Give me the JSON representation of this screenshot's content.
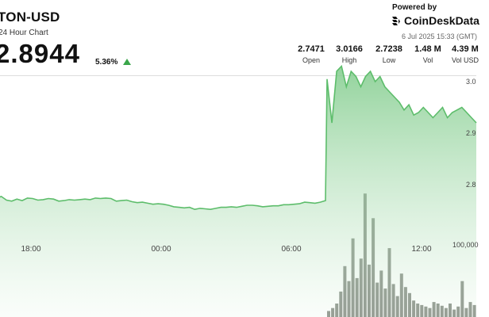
{
  "header": {
    "title": "TON-USD",
    "subtitle": "24 Hour Chart",
    "price": "2.8944",
    "change": "5.36%"
  },
  "branding": {
    "powered_by": "Powered by",
    "name": "CoinDeskData",
    "timestamp": "6 Jul 2025 15:33 (GMT)"
  },
  "stats": [
    {
      "value": "2.7471",
      "label": "Open"
    },
    {
      "value": "3.0166",
      "label": "High"
    },
    {
      "value": "2.7238",
      "label": "Low"
    },
    {
      "value": "1.48 M",
      "label": "Vol"
    },
    {
      "value": "4.39 M",
      "label": "Vol USD"
    }
  ],
  "colors": {
    "line": "#5dbd6b",
    "fill_top": "#7fcb8a",
    "fill_bottom": "#f2faf3",
    "volume": "#5b6358",
    "up": "#3aa64a"
  },
  "chart_data": {
    "type": "area",
    "x_labels": [
      "18:00",
      "00:00",
      "06:00",
      "12:00"
    ],
    "y_labels": [
      "3.0",
      "2.9",
      "2.8"
    ],
    "volume_label": "100,000",
    "price_series": [
      2.773,
      2.777,
      2.77,
      2.768,
      2.772,
      2.769,
      2.774,
      2.773,
      2.77,
      2.771,
      2.773,
      2.772,
      2.768,
      2.769,
      2.771,
      2.77,
      2.771,
      2.772,
      2.771,
      2.774,
      2.773,
      2.774,
      2.773,
      2.768,
      2.769,
      2.77,
      2.767,
      2.765,
      2.766,
      2.764,
      2.762,
      2.763,
      2.762,
      2.76,
      2.757,
      2.756,
      2.755,
      2.756,
      2.752,
      2.754,
      2.753,
      2.752,
      2.754,
      2.756,
      2.756,
      2.757,
      2.756,
      2.758,
      2.76,
      2.76,
      2.759,
      2.757,
      2.758,
      2.759,
      2.759,
      2.761,
      2.761,
      2.762,
      2.763,
      2.766,
      2.765,
      2.764,
      2.766,
      2.769,
      3.005,
      2.92,
      3.02,
      3.03,
      2.99,
      3.02,
      3.01,
      2.99,
      3.01,
      3.02,
      3.0,
      3.01,
      2.99,
      2.98,
      2.97,
      2.96,
      2.945,
      2.955,
      2.935,
      2.94,
      2.95,
      2.94,
      2.93,
      2.94,
      2.95,
      2.93,
      2.94,
      2.945,
      2.95,
      2.94,
      2.93,
      2.92
    ],
    "volume_bars": [
      8000,
      12000,
      18000,
      34000,
      68000,
      48000,
      105000,
      52000,
      78000,
      165000,
      70000,
      132000,
      46000,
      62000,
      38000,
      92000,
      44000,
      28000,
      58000,
      40000,
      32000,
      22000,
      18000,
      16000,
      14000,
      12000,
      20000,
      18000,
      15000,
      12000,
      18000,
      10000,
      14000,
      48000,
      12000,
      20000,
      16000
    ],
    "volume_max": 180000
  }
}
